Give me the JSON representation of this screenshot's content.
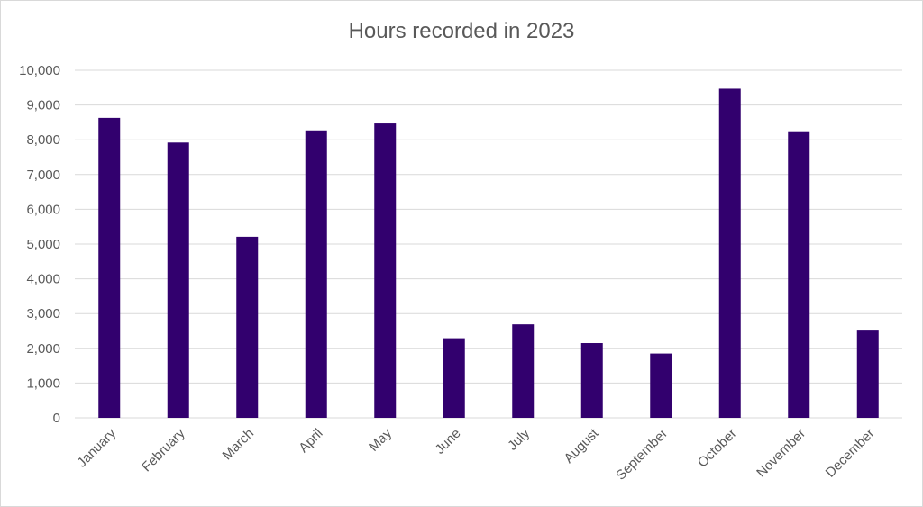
{
  "chart_data": {
    "type": "bar",
    "title": "Hours recorded in 2023",
    "xlabel": "",
    "ylabel": "",
    "categories": [
      "January",
      "February",
      "March",
      "April",
      "May",
      "June",
      "July",
      "August",
      "September",
      "October",
      "November",
      "December"
    ],
    "values": [
      8630,
      7920,
      5210,
      8270,
      8470,
      2290,
      2690,
      2150,
      1850,
      9470,
      8220,
      2510
    ],
    "ylim": [
      0,
      10000
    ],
    "yticks": [
      0,
      1000,
      2000,
      3000,
      4000,
      5000,
      6000,
      7000,
      8000,
      9000,
      10000
    ],
    "ytick_labels": [
      "0",
      "1,000",
      "2,000",
      "3,000",
      "4,000",
      "5,000",
      "6,000",
      "7,000",
      "8,000",
      "9,000",
      "10,000"
    ],
    "grid": true,
    "legend": "none",
    "bar_color": "#32006e"
  }
}
